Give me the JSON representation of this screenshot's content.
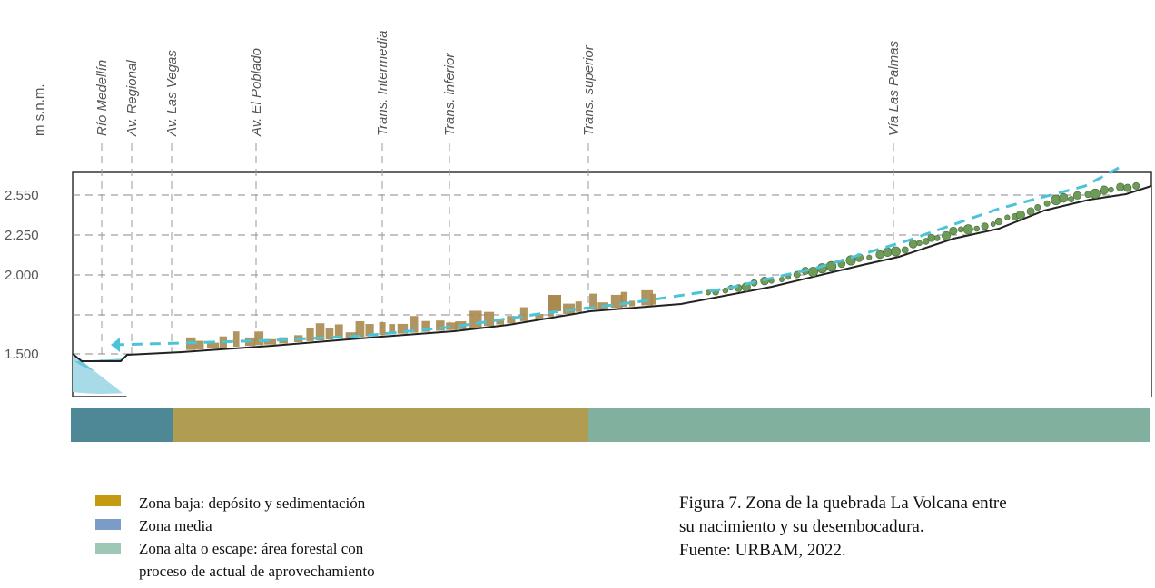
{
  "axis": {
    "label": "m s.n.m.",
    "ticks": [
      "2.550",
      "2.250",
      "2.000",
      "1.500"
    ]
  },
  "roads": [
    "Río Medellín",
    "Av. Regional",
    "Av. Las Vegas",
    "Av. El Poblado",
    "Trans. Intermedia",
    "Trans. inferior",
    "Trans. superior",
    "Vía Las Palmas"
  ],
  "legend": [
    {
      "lines": [
        "Zona baja: depósito y sedimentación"
      ]
    },
    {
      "lines": [
        "Zona media"
      ]
    },
    {
      "lines": [
        "Zona alta o escape: área forestal con",
        "proceso de actual de aprovechamiento"
      ]
    }
  ],
  "caption": {
    "lines": [
      "Figura 7. Zona de la quebrada La Volcana entre",
      "su nacimiento y su desembocadura.",
      "Fuente: URBAM, 2022."
    ]
  }
}
